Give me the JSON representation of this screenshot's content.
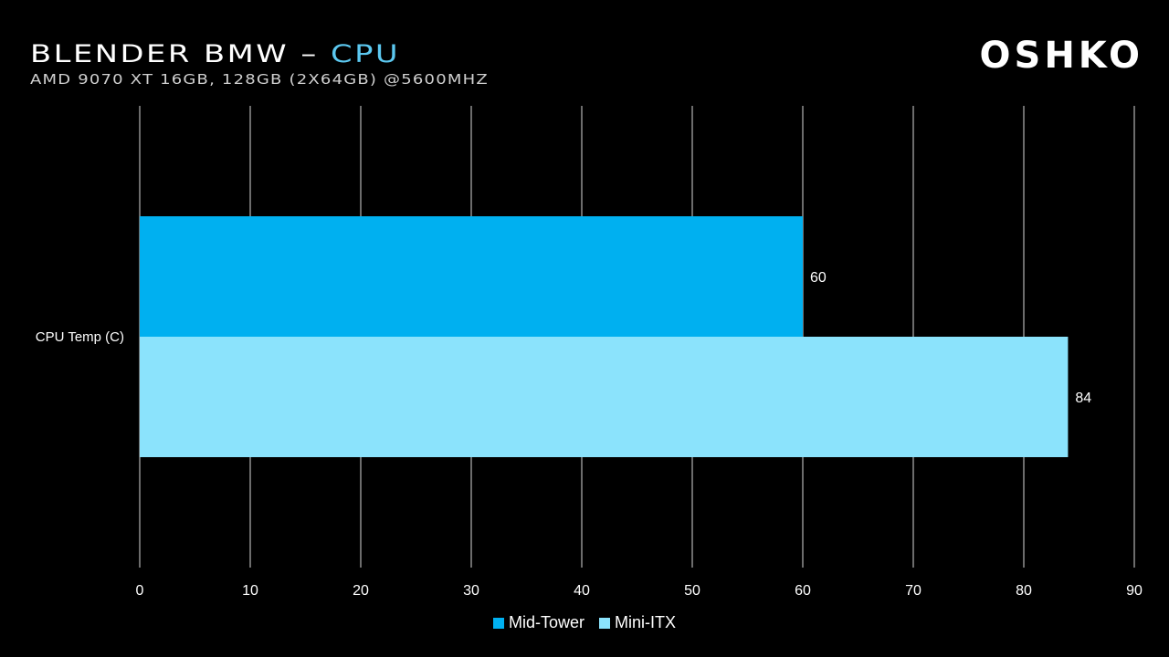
{
  "header": {
    "title_main": "BLENDER BMW – ",
    "title_accent": "CPU",
    "subtitle": "AMD 9070 XT 16GB, 128GB (2X64GB) @5600MHZ",
    "logo": "OSHKO"
  },
  "chart_data": {
    "type": "bar",
    "orientation": "horizontal",
    "categories": [
      "CPU Temp (C)"
    ],
    "series": [
      {
        "name": "Mid-Tower",
        "values": [
          60
        ],
        "color": "#00B0F0"
      },
      {
        "name": "Mini-ITX",
        "values": [
          84
        ],
        "color": "#8BE3FC"
      }
    ],
    "xlim": [
      0,
      90
    ],
    "xticks": [
      0,
      10,
      20,
      30,
      40,
      50,
      60,
      70,
      80,
      90
    ],
    "grid": true,
    "legend": "bottom",
    "data_labels": true
  }
}
